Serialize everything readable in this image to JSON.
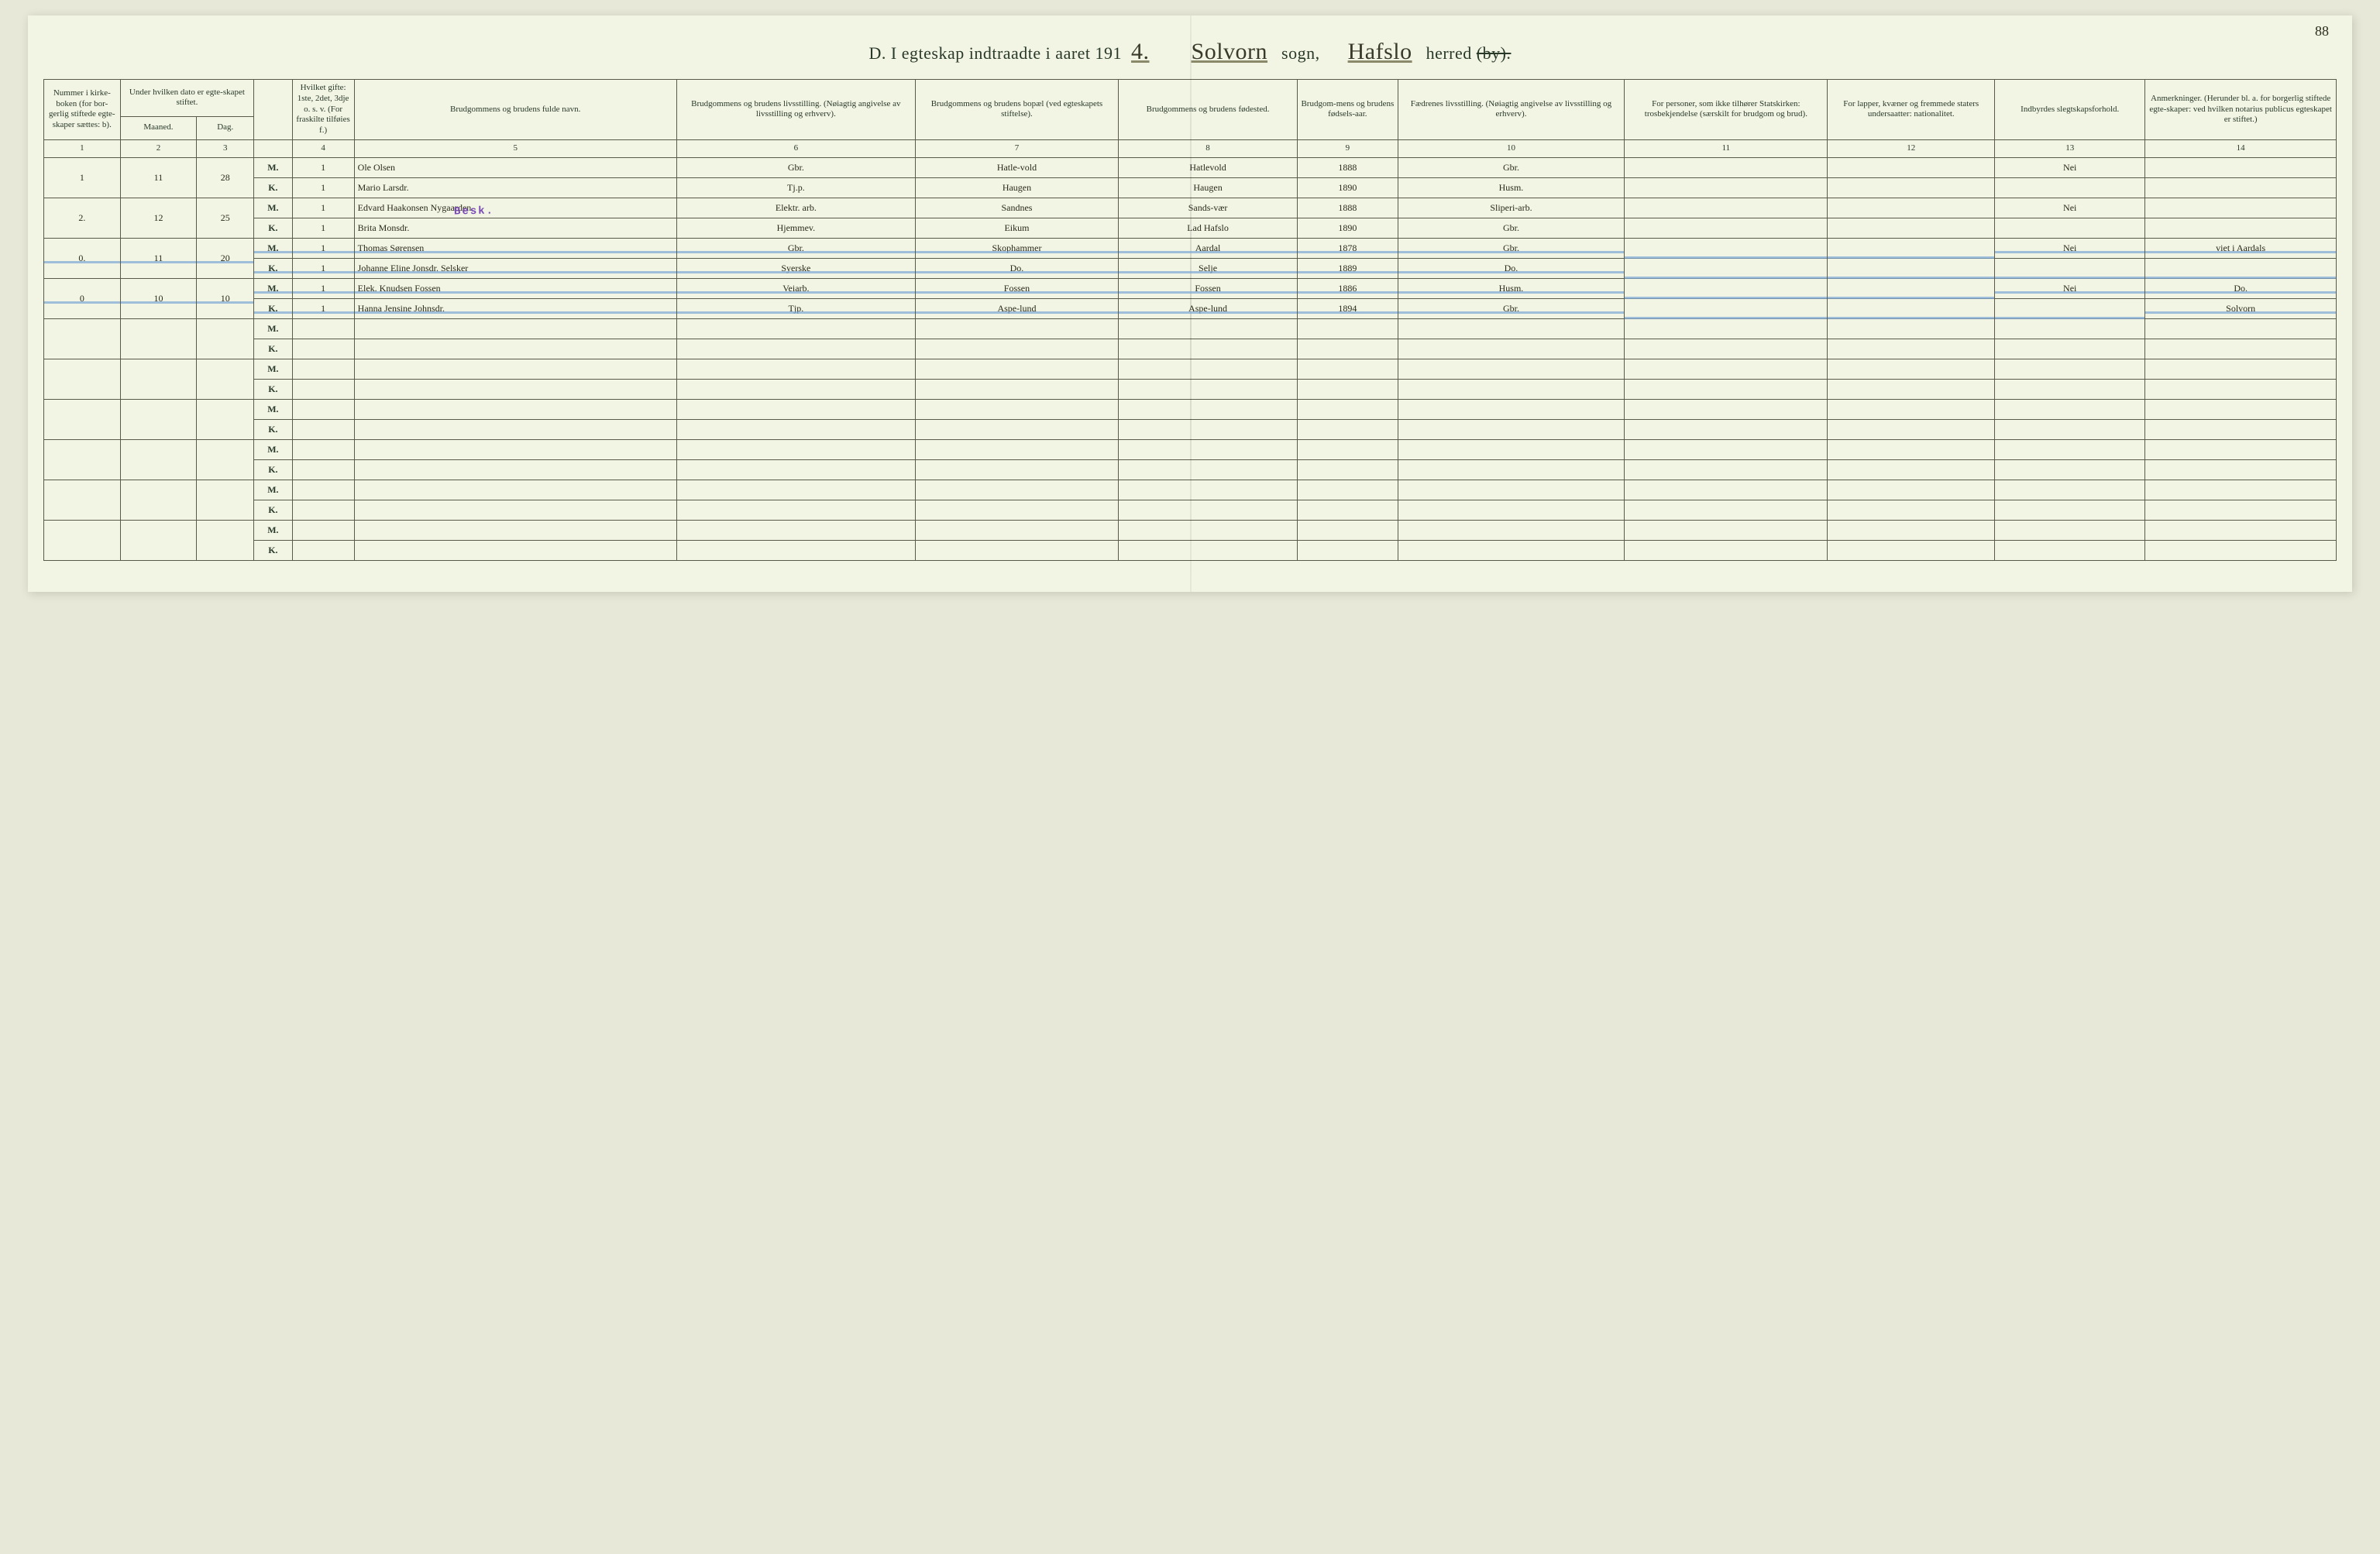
{
  "pageNumber": "88",
  "title": {
    "prefix": "D.   I egteskap indtraadte i aaret 191",
    "yearSuffix": "4.",
    "sognLabel": "sogn,",
    "sognValue": "Solvorn",
    "herredLabel": "herred",
    "herredValue": "Hafslo",
    "struck": "(by)."
  },
  "headers": {
    "c1": "Nummer i kirke-boken (for bor-gerlig stiftede egte-skaper sættes: b).",
    "c2": "Under hvilken dato er egte-skapet stiftet.",
    "c2a": "Maaned.",
    "c2b": "Dag.",
    "c3b": "",
    "c4": "Hvilket gifte: 1ste, 2det, 3dje o. s. v. (For fraskilte tilføies f.)",
    "c5": "Brudgommens og brudens fulde navn.",
    "c6": "Brudgommens og brudens livsstilling. (Nøiagtig angivelse av livsstilling og erhverv).",
    "c7": "Brudgommens og brudens bopæl (ved egteskapets stiftelse).",
    "c8": "Brudgommens og brudens fødested.",
    "c9": "Brudgom-mens og brudens fødsels-aar.",
    "c10": "Fædrenes livsstilling. (Nøiagtig angivelse av livsstilling og erhverv).",
    "c11": "For personer, som ikke tilhører Statskirken: trosbekjendelse (særskilt for brudgom og brud).",
    "c12": "For lapper, kvæner og fremmede staters undersaatter: nationalitet.",
    "c13": "Indbyrdes slegtskapsforhold.",
    "c14": "Anmerkninger. (Herunder bl. a. for borgerlig stiftede egte-skaper: ved hvilken notarius publicus egteskapet er stiftet.)"
  },
  "colNums": [
    "1",
    "2",
    "3",
    "",
    "4",
    "5",
    "6",
    "7",
    "8",
    "9",
    "10",
    "11",
    "12",
    "13",
    "14"
  ],
  "mkLabels": {
    "m": "M.",
    "k": "K."
  },
  "stamp": "Besk.",
  "rows": [
    {
      "num": "1",
      "maaned": "11",
      "dag": "28",
      "m": {
        "gifte": "1",
        "navn": "Ole Olsen",
        "stilling": "Gbr.",
        "bopael": "Hatle-vold",
        "fodested": "Hatlevold",
        "aar": "1888",
        "faedre": "Gbr.",
        "c11": "",
        "c12": "",
        "c13": "Nei",
        "c14": ""
      },
      "k": {
        "gifte": "1",
        "navn": "Mario Larsdr.",
        "stilling": "Tj.p.",
        "bopael": "Haugen",
        "fodested": "Haugen",
        "aar": "1890",
        "faedre": "Husm.",
        "c11": "",
        "c12": "",
        "c13": "",
        "c14": ""
      }
    },
    {
      "num": "2.",
      "maaned": "12",
      "dag": "25",
      "m": {
        "gifte": "1",
        "navn": "Edvard Haakonsen Nygaarden",
        "stilling": "Elektr. arb.",
        "bopael": "Sandnes",
        "fodested": "Sands-vær",
        "aar": "1888",
        "faedre": "Sliperi-arb.",
        "c11": "",
        "c12": "",
        "c13": "Nei",
        "c14": ""
      },
      "k": {
        "gifte": "1",
        "navn": "Brita Monsdr.",
        "stilling": "Hjemmev.",
        "bopael": "Eikum",
        "fodested": "Lad Hafslo",
        "aar": "1890",
        "faedre": "Gbr.",
        "c11": "",
        "c12": "",
        "c13": "",
        "c14": ""
      }
    },
    {
      "num": "0.",
      "maaned": "11",
      "dag": "20",
      "blue": true,
      "m": {
        "gifte": "1",
        "navn": "Thomas Sørensen",
        "stilling": "Gbr.",
        "bopael": "Skophammer",
        "fodested": "Aardal",
        "aar": "1878",
        "faedre": "Gbr.",
        "c11": "",
        "c12": "",
        "c13": "Nei",
        "c14": "viet i Aardals"
      },
      "k": {
        "gifte": "1",
        "navn": "Johanne Eline Jonsdr. Selsker",
        "stilling": "Syerske",
        "bopael": "Do.",
        "fodested": "Selje",
        "aar": "1889",
        "faedre": "Do.",
        "c11": "",
        "c12": "",
        "c13": "",
        "c14": ""
      }
    },
    {
      "num": "0",
      "maaned": "10",
      "dag": "10",
      "blue": true,
      "m": {
        "gifte": "1",
        "navn": "Elek. Knudsen Fossen",
        "stilling": "Veiarb.",
        "bopael": "Fossen",
        "fodested": "Fossen",
        "aar": "1886",
        "faedre": "Husm.",
        "c11": "",
        "c12": "",
        "c13": "Nei",
        "c14": "Do."
      },
      "k": {
        "gifte": "1",
        "navn": "Hanna Jensine Johnsdr.",
        "stilling": "Tjp.",
        "bopael": "Aspe-lund",
        "fodested": "Aspe-lund",
        "aar": "1894",
        "faedre": "Gbr.",
        "c11": "",
        "c12": "",
        "c13": "",
        "c14": "Solvorn"
      }
    }
  ],
  "emptyPairs": 6,
  "styles": {
    "pageBg": "#f2f4e4",
    "bodyBg": "#e8e8d8",
    "border": "#5a5a4a",
    "hand": "#2a2a1a",
    "blueStrike": "#7aa6d6",
    "stampColor": "#7a4ab5"
  }
}
